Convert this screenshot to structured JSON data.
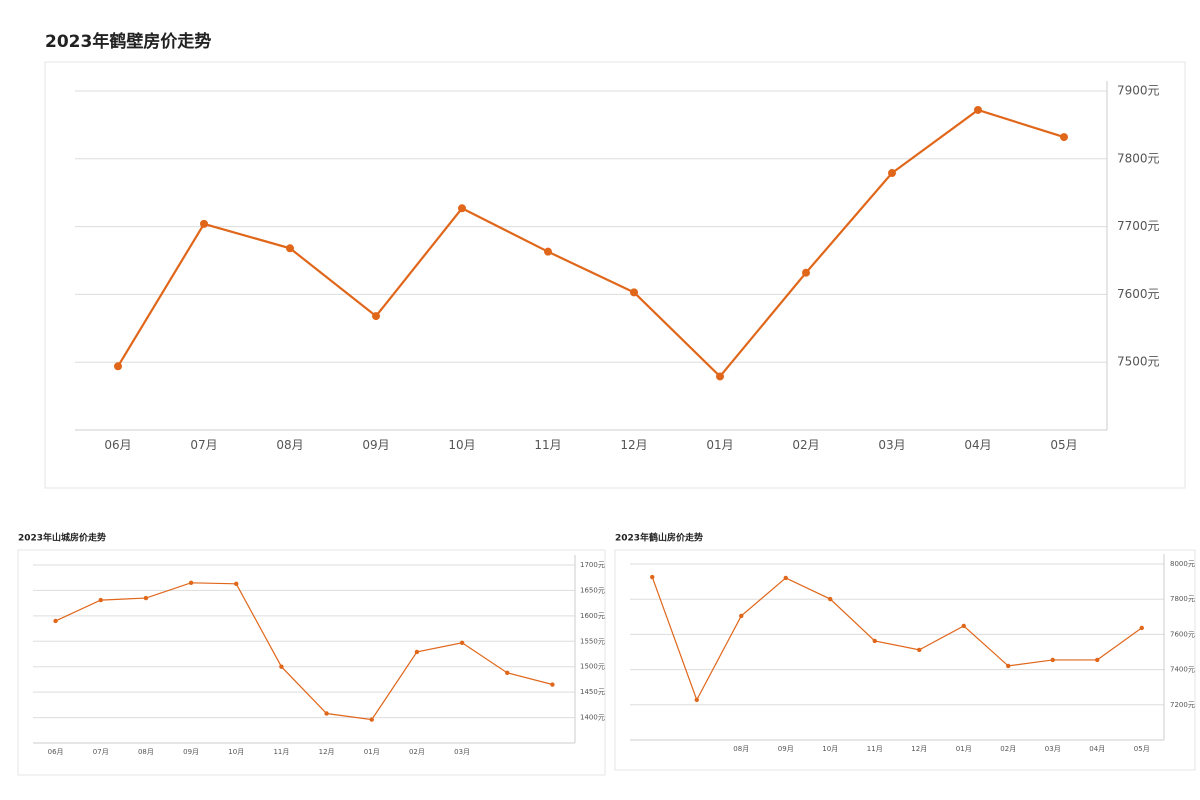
{
  "chart_data": [
    {
      "type": "line",
      "title": "2023年鹤壁房价走势",
      "categories": [
        "06月",
        "07月",
        "08月",
        "09月",
        "10月",
        "11月",
        "12月",
        "01月",
        "02月",
        "03月",
        "04月",
        "05月"
      ],
      "series": [
        {
          "color": "#e0661a",
          "values": [
            7494,
            7704,
            7668,
            7568,
            7727,
            7663,
            7603,
            7479,
            7632,
            7779,
            7872,
            7832
          ]
        }
      ],
      "ylim": [
        7400,
        7900
      ],
      "yticks": [
        {
          "value": 7500,
          "label": "7500元"
        },
        {
          "value": 7600,
          "label": "7600元"
        },
        {
          "value": 7700,
          "label": "7700元"
        },
        {
          "value": 7800,
          "label": "7800元"
        },
        {
          "value": 7900,
          "label": "7900元"
        }
      ],
      "grid": true
    },
    {
      "type": "line",
      "title": "2023年山城房价走势",
      "categories": [
        "06月",
        "07月",
        "08月",
        "09月",
        "10月",
        "11月",
        "12月",
        "01月",
        "02月",
        "03月",
        null,
        null
      ],
      "series": [
        {
          "color": "#e0661a",
          "values": [
            1590,
            1631,
            1635,
            1665,
            1663,
            1500,
            1408,
            1396,
            1529,
            1547,
            1488,
            1465
          ]
        }
      ],
      "ylim": [
        1350,
        1700
      ],
      "yticks": [
        {
          "value": 1400,
          "label": "1400元"
        },
        {
          "value": 1450,
          "label": "1450元"
        },
        {
          "value": 1500,
          "label": "1500元"
        },
        {
          "value": 1550,
          "label": "1550元"
        },
        {
          "value": 1600,
          "label": "1600元"
        },
        {
          "value": 1650,
          "label": "1650元"
        },
        {
          "value": 1700,
          "label": "1700元"
        }
      ],
      "grid": true
    },
    {
      "type": "line",
      "title": "2023年鹤山房价走势",
      "categories": [
        null,
        null,
        "08月",
        "09月",
        "10月",
        "11月",
        "12月",
        "01月",
        "02月",
        "03月",
        "04月",
        "05月"
      ],
      "series": [
        {
          "color": "#e0661a",
          "values": [
            7926,
            7228,
            7705,
            7921,
            7801,
            7563,
            7512,
            7648,
            7421,
            7455,
            7455,
            7637
          ]
        }
      ],
      "ylim": [
        7000,
        8000
      ],
      "yticks": [
        {
          "value": 7200,
          "label": "7200元"
        },
        {
          "value": 7400,
          "label": "7400元"
        },
        {
          "value": 7600,
          "label": "7600元"
        },
        {
          "value": 7800,
          "label": "7800元"
        },
        {
          "value": 8000,
          "label": "8000元"
        }
      ],
      "grid": true
    }
  ]
}
